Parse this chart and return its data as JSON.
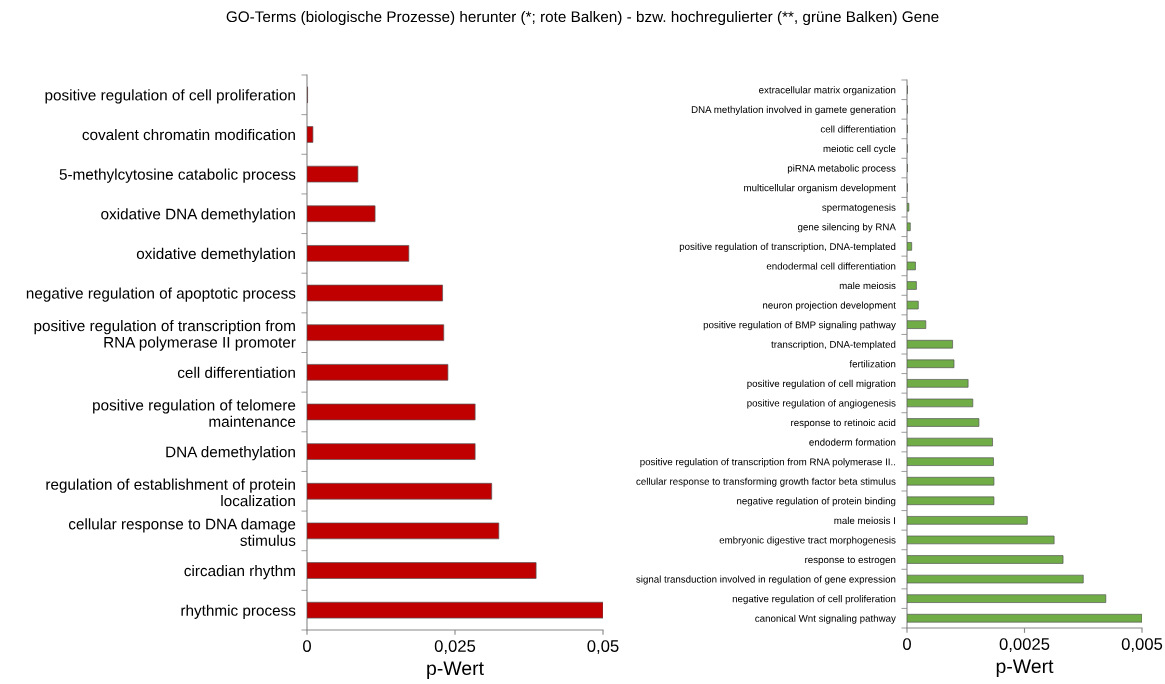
{
  "chart_data": [
    {
      "type": "bar",
      "orientation": "horizontal",
      "title": "GO-Terms (biologische Prozesse) herunter (*; rote Balken) - bzw. hochregulierter (**, grüne Balken) Gene",
      "xlabel": "p-Wert",
      "categories": [
        "positive regulation of cell proliferation",
        "covalent chromatin modification",
        "5-methylcytosine catabolic process",
        "oxidative DNA demethylation",
        "oxidative demethylation",
        "negative regulation of apoptotic process",
        "positive regulation of transcription from\nRNA polymerase II promoter",
        "cell differentiation",
        "positive regulation of telomere\nmaintenance",
        "DNA demethylation",
        "regulation of establishment of protein\nlocalization",
        "cellular response to DNA damage\nstimulus",
        "circadian rhythm",
        "rhythmic process"
      ],
      "values": [
        0.0001,
        0.001,
        0.0086,
        0.0115,
        0.0172,
        0.0229,
        0.0231,
        0.0238,
        0.0284,
        0.0284,
        0.0312,
        0.0324,
        0.0387,
        0.05
      ],
      "color": "#c00000",
      "xlim": [
        0,
        0.05
      ],
      "xticks": [
        0,
        {
          "value": 0.025,
          "label": "0,025"
        },
        {
          "value": 0.05,
          "label": "0,05"
        }
      ],
      "grid": false,
      "legend": false
    },
    {
      "type": "bar",
      "orientation": "horizontal",
      "xlabel": "p-Wert",
      "categories": [
        "extracellular matrix organization",
        "DNA methylation involved in gamete generation",
        "cell differentiation",
        "meiotic cell cycle",
        "piRNA metabolic process",
        "multicellular organism development",
        "spermatogenesis",
        "gene silencing by RNA",
        "positive regulation of transcription, DNA-templated",
        "endodermal cell differentiation",
        "male meiosis",
        "neuron projection development",
        "positive regulation of BMP signaling pathway",
        "transcription, DNA-templated",
        "fertilization",
        "positive regulation of cell migration",
        "positive regulation of angiogenesis",
        "response to retinoic acid",
        "endoderm formation",
        "positive regulation of transcription from RNA polymerase II..",
        "cellular response to transforming growth factor beta stimulus",
        "negative regulation of protein binding",
        "male meiosis I",
        "embryonic digestive tract morphogenesis",
        "response to estrogen",
        "signal transduction involved in regulation of gene expression",
        "negative regulation of cell proliferation",
        "canonical Wnt signaling pathway"
      ],
      "values": [
        1e-05,
        1e-05,
        1e-05,
        1e-05,
        1e-05,
        1e-05,
        4e-05,
        7e-05,
        0.0001,
        0.00018,
        0.0002,
        0.00024,
        0.0004,
        0.00097,
        0.001,
        0.0013,
        0.0014,
        0.00153,
        0.00182,
        0.00184,
        0.00185,
        0.00185,
        0.00256,
        0.00313,
        0.00332,
        0.00375,
        0.00423,
        0.005
      ],
      "color": "#70ad47",
      "xlim": [
        0,
        0.005
      ],
      "xticks": [
        0,
        {
          "value": 0.0025,
          "label": "0,0025"
        },
        {
          "value": 0.005,
          "label": "0,005"
        }
      ],
      "grid": false,
      "legend": false
    }
  ]
}
